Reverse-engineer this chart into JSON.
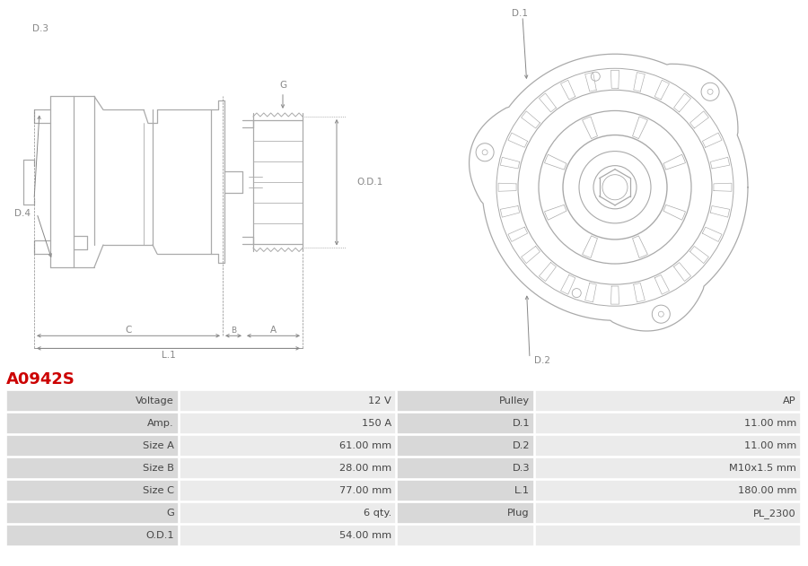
{
  "title": "A0942S",
  "title_color": "#cc0000",
  "bg_color": "#ffffff",
  "table_label_bg": "#d8d8d8",
  "table_value_bg": "#ebebeb",
  "table_border_color": "#ffffff",
  "line_color": "#aaaaaa",
  "dim_color": "#888888",
  "rows": [
    [
      "Voltage",
      "12 V",
      "Pulley",
      "AP"
    ],
    [
      "Amp.",
      "150 A",
      "D.1",
      "11.00 mm"
    ],
    [
      "Size A",
      "61.00 mm",
      "D.2",
      "11.00 mm"
    ],
    [
      "Size B",
      "28.00 mm",
      "D.3",
      "M10x1.5 mm"
    ],
    [
      "Size C",
      "77.00 mm",
      "L.1",
      "180.00 mm"
    ],
    [
      "G",
      "6 qty.",
      "Plug",
      "PL_2300"
    ],
    [
      "O.D.1",
      "54.00 mm",
      "",
      ""
    ]
  ]
}
